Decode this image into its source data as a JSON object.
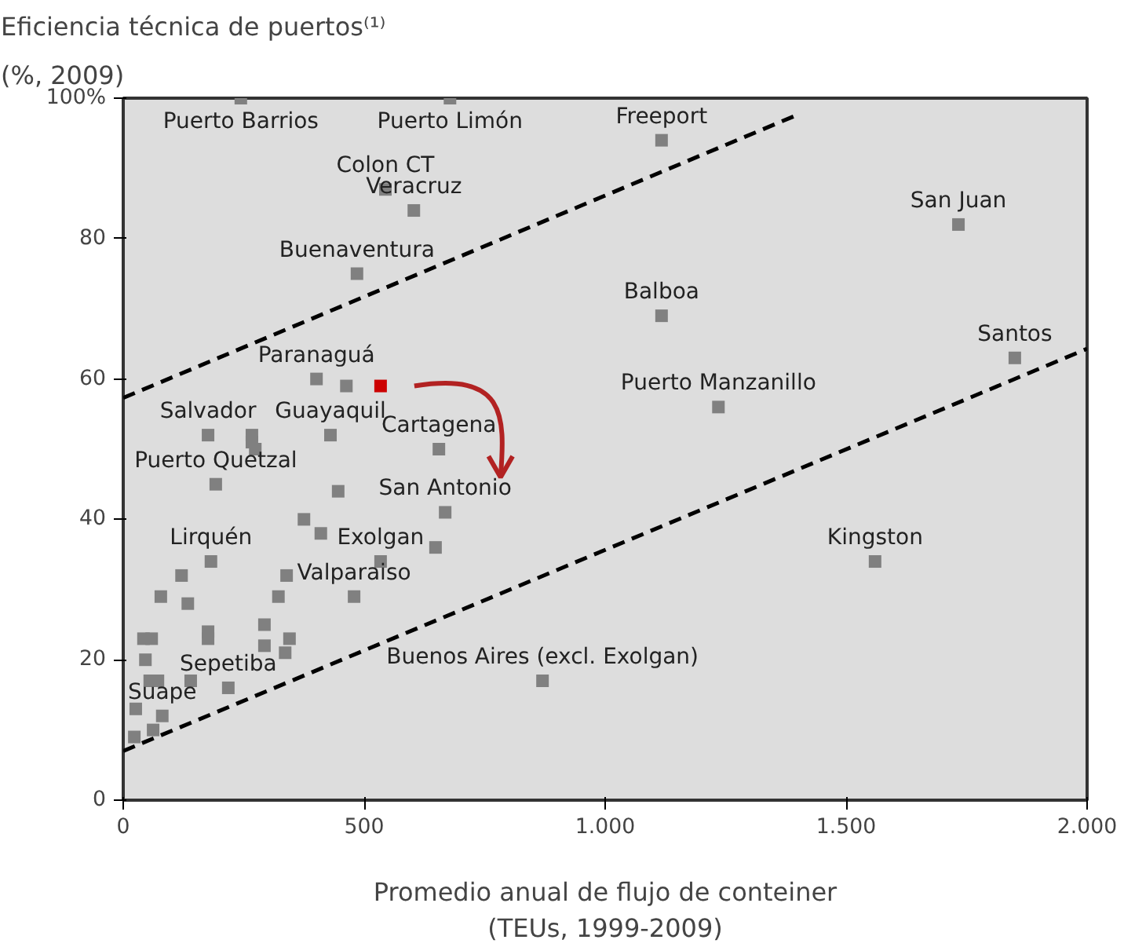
{
  "chart_data": {
    "type": "scatter",
    "title": "Eficiencia técnica de puertos⁽¹⁾",
    "subtitle": "(%, 2009)",
    "xlabel": "Promedio anual de flujo de conteiner\n(TEUs, 1999-2009)",
    "xlim": [
      0,
      2000
    ],
    "ylim": [
      0,
      100
    ],
    "xticks": [
      0,
      500,
      {
        "value": 1000,
        "label": "1.000"
      },
      {
        "value": 1500,
        "label": "1.500"
      },
      {
        "value": 2000,
        "label": "2.000"
      }
    ],
    "yticks": [
      0,
      20,
      40,
      60,
      80,
      {
        "value": 100,
        "label": "100%"
      }
    ],
    "grid": false,
    "series": [
      {
        "color": "#808080",
        "marker": "square",
        "x": [
          244,
          678,
          1117,
          1733,
          544,
          603,
          485,
          1117,
          1850,
          401,
          463,
          1235,
          176,
          267,
          267,
          274,
          430,
          655,
          192,
          446,
          668,
          1560,
          375,
          410,
          648,
          534,
          182,
          121,
          339,
          78,
          134,
          322,
          479,
          42,
          59,
          176,
          176,
          293,
          293,
          345,
          336,
          46,
          72,
          55,
          140,
          26,
          62,
          81,
          23,
          218,
          870
        ],
        "values": [
          100,
          100,
          94,
          82,
          87,
          84,
          75,
          69,
          63,
          60,
          59,
          56,
          52,
          52,
          51,
          50,
          52,
          50,
          45,
          44,
          41,
          34,
          40,
          38,
          36,
          34,
          34,
          32,
          32,
          29,
          28,
          29,
          29,
          23,
          23,
          24,
          23,
          25,
          22,
          23,
          21,
          20,
          17,
          17,
          17,
          13,
          10,
          12,
          9,
          16,
          17
        ]
      },
      {
        "color": "#cc0000",
        "marker": "square",
        "x": [
          534
        ],
        "values": [
          59
        ]
      },
      {
        "type": "line",
        "color": "#000000",
        "line_style": "dashed",
        "x": [
          0,
          1391
        ],
        "values": [
          57.3,
          97.4
        ]
      },
      {
        "type": "line",
        "color": "#000000",
        "line_style": "dashed",
        "x": [
          0,
          2000
        ],
        "values": [
          7,
          64.3
        ]
      }
    ],
    "annotations": [
      {
        "text": "Puerto Barrios",
        "x": 244,
        "y": 100
      },
      {
        "text": "Puerto Limón",
        "x": 678,
        "y": 100
      },
      {
        "text": "Freeport",
        "x": 1117,
        "y": 94
      },
      {
        "text": "Colon CT",
        "x": 544,
        "y": 87
      },
      {
        "text": "Veracruz",
        "x": 603,
        "y": 84
      },
      {
        "text": "Buenaventura",
        "x": 485,
        "y": 75
      },
      {
        "text": "San Juan",
        "x": 1733,
        "y": 82
      },
      {
        "text": "Balboa",
        "x": 1117,
        "y": 69
      },
      {
        "text": "Santos",
        "x": 1850,
        "y": 63
      },
      {
        "text": "Paranaguá",
        "x": 401,
        "y": 60
      },
      {
        "text": "Puerto Manzanillo",
        "x": 1235,
        "y": 56
      },
      {
        "text": "Salvador",
        "x": 176,
        "y": 52
      },
      {
        "text": "Guayaquil",
        "x": 430,
        "y": 52
      },
      {
        "text": "Cartagena",
        "x": 655,
        "y": 50
      },
      {
        "text": "San Antonio",
        "x": 668,
        "y": 41
      },
      {
        "text": "Puerto Quetzal",
        "x": 192,
        "y": 45
      },
      {
        "text": "Lirquén",
        "x": 182,
        "y": 34
      },
      {
        "text": "Exolgan",
        "x": 534,
        "y": 34
      },
      {
        "text": "Kingston",
        "x": 1560,
        "y": 34
      },
      {
        "text": "Valparaiso",
        "x": 479,
        "y": 29
      },
      {
        "text": "Buenos Aires (excl. Exolgan)",
        "x": 870,
        "y": 17
      },
      {
        "text": "Sepetiba",
        "x": 218,
        "y": 16
      },
      {
        "text": "Suape",
        "x": 81,
        "y": 12
      }
    ]
  }
}
